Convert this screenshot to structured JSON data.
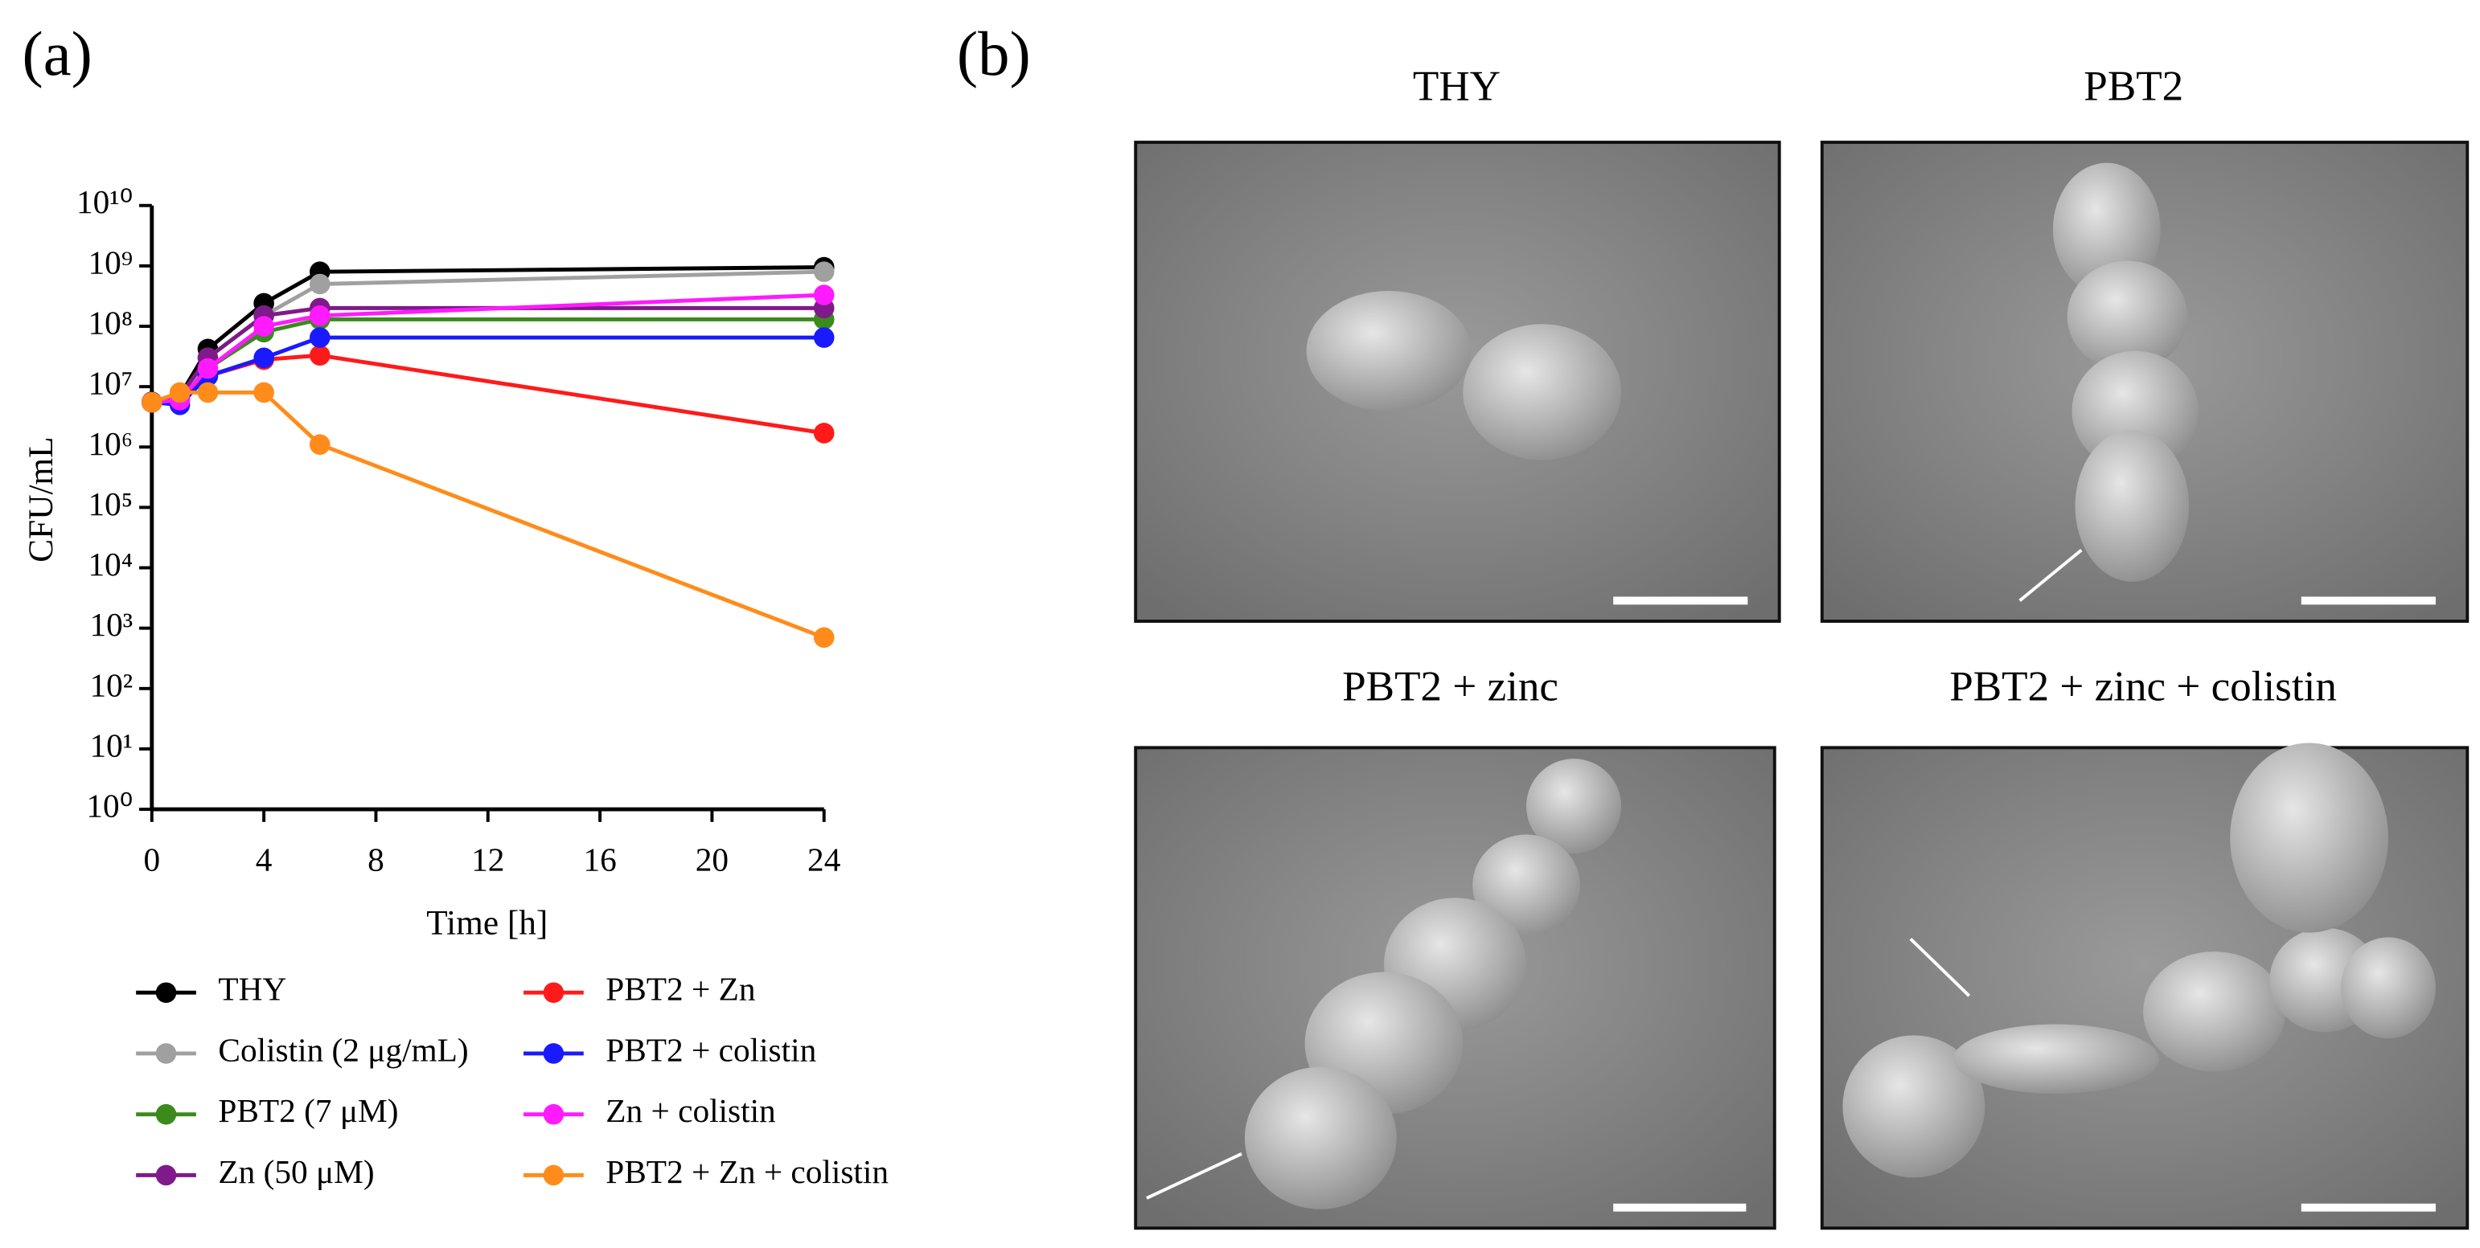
{
  "chart_data": {
    "type": "line",
    "x_label": "Time [h]",
    "y_label": "CFU/mL",
    "log_y": true,
    "x": [
      0,
      1,
      2,
      4,
      6,
      24
    ],
    "xlim": [
      0,
      24
    ],
    "xticks": [
      0,
      4,
      8,
      12,
      16,
      20,
      24
    ],
    "ylim": [
      1,
      10000000000
    ],
    "yticks": [
      {
        "value": 1,
        "label": "10⁰"
      },
      {
        "value": 10,
        "label": "10¹"
      },
      {
        "value": 100,
        "label": "10²"
      },
      {
        "value": 1000,
        "label": "10³"
      },
      {
        "value": 10000,
        "label": "10⁴"
      },
      {
        "value": 100000,
        "label": "10⁵"
      },
      {
        "value": 1000000,
        "label": "10⁶"
      },
      {
        "value": 10000000,
        "label": "10⁷"
      },
      {
        "value": 100000000,
        "label": "10⁸"
      },
      {
        "value": 1000000000,
        "label": "10⁹"
      },
      {
        "value": 10000000000,
        "label": "10¹⁰"
      }
    ],
    "series": [
      {
        "name": "THY",
        "color": "#000000",
        "values": [
          5600000,
          7000000,
          42000000,
          240000000,
          800000000,
          950000000
        ]
      },
      {
        "name": "Colistin (2 μg/mL)",
        "color": "#a0a0a0",
        "values": [
          5500000,
          6000000,
          30000000,
          150000000,
          500000000,
          800000000
        ]
      },
      {
        "name": "PBT2 (7 μM)",
        "color": "#3b8a1c",
        "values": [
          5500000,
          6000000,
          20000000,
          80000000,
          130000000,
          130000000
        ]
      },
      {
        "name": "Zn (50 μM)",
        "color": "#7f1a8a",
        "values": [
          5500000,
          7000000,
          30000000,
          150000000,
          200000000,
          200000000
        ]
      },
      {
        "name": "PBT2 + Zn",
        "color": "#ff1a1a",
        "values": [
          5500000,
          6000000,
          15000000,
          28000000,
          33000000,
          1700000
        ]
      },
      {
        "name": "PBT2 + colistin",
        "color": "#1a1aff",
        "values": [
          5500000,
          5000000,
          15000000,
          30000000,
          65000000,
          65000000
        ]
      },
      {
        "name": "Zn + colistin",
        "color": "#ff1aff",
        "values": [
          5500000,
          6000000,
          20000000,
          100000000,
          150000000,
          330000000
        ]
      },
      {
        "name": "PBT2 + Zn + colistin",
        "color": "#ff8c1a",
        "values": [
          5500000,
          8000000,
          8000000,
          8000000,
          1100000,
          700
        ]
      }
    ]
  },
  "panel_labels": [
    "(a)",
    "(b)"
  ],
  "images": [
    {
      "title": "THY"
    },
    {
      "title": "PBT2"
    },
    {
      "title": "PBT2 + zinc"
    },
    {
      "title": "PBT2 + zinc + colistin"
    }
  ]
}
